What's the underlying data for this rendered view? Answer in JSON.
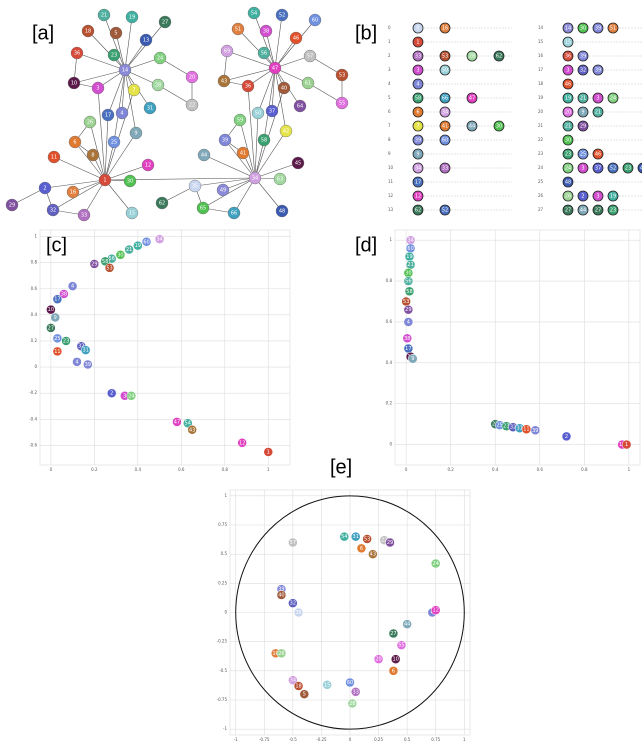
{
  "palette": [
    "#c9d6f0",
    "#d64a3a",
    "#5a5fd0",
    "#d24fd0",
    "#7f86d8",
    "#a05a3a",
    "#e07a30",
    "#e4e44a",
    "#a9743a",
    "#7fa8b8",
    "#5b1a4a",
    "#e0502a",
    "#e040c0",
    "#3a5ab0",
    "#8a8ad8",
    "#9ad0d8",
    "#e08040",
    "#4a70c0",
    "#b85030",
    "#40b0a0",
    "#e070e0",
    "#50b0a0",
    "#c0c0c0",
    "#3aa070",
    "#80d080",
    "#7090e0",
    "#9ad090",
    "#3a7a5a",
    "#a0d8a0",
    "#8050a0",
    "#50c050",
    "#40a0c0",
    "#6060c0",
    "#b070c0",
    "#d0a0e0"
  ],
  "panels": {
    "a": {
      "label": "[a]",
      "graphs": [
        {
          "nodes": [
            21,
            19,
            27,
            18,
            5,
            13,
            36,
            23,
            14,
            24,
            20,
            10,
            3,
            7,
            28,
            22,
            17,
            31,
            26,
            9,
            4,
            6,
            25,
            8,
            11,
            12,
            1,
            2,
            16,
            30,
            29,
            32,
            33,
            15
          ]
        },
        {
          "nodes": [
            54,
            52,
            60,
            51,
            38,
            46,
            69,
            56,
            47,
            57,
            53,
            43,
            36,
            40,
            61,
            55,
            50,
            64,
            59,
            42,
            37,
            39,
            58,
            41,
            44,
            45,
            34,
            35,
            49,
            63,
            62,
            65,
            66,
            48
          ]
        }
      ]
    },
    "b": {
      "label": "[b]",
      "rows": [
        {
          "index": 0,
          "items": [
            0,
            16
          ]
        },
        {
          "index": 1,
          "items": [
            1
          ]
        },
        {
          "index": 2,
          "items": [
            33,
            53,
            28,
            62
          ]
        },
        {
          "index": 3,
          "items": [
            3,
            50
          ]
        },
        {
          "index": 4,
          "items": [
            4
          ]
        },
        {
          "index": 5,
          "items": [
            58,
            66,
            47
          ]
        },
        {
          "index": 6,
          "items": [
            6,
            34
          ]
        },
        {
          "index": 7,
          "items": [
            7,
            41,
            44,
            30
          ]
        },
        {
          "index": 8,
          "items": [
            39,
            60
          ]
        },
        {
          "index": 9,
          "items": [
            9
          ]
        },
        {
          "index": 10,
          "items": [
            34,
            33
          ]
        },
        {
          "index": 11,
          "items": [
            17
          ]
        },
        {
          "index": 12,
          "items": [
            12
          ]
        },
        {
          "index": 13,
          "items": [
            62,
            52
          ]
        },
        {
          "index": 14,
          "items": [
            14,
            30,
            39,
            51
          ]
        },
        {
          "index": 15,
          "items": [
            15
          ]
        },
        {
          "index": 16,
          "items": [
            36,
            39
          ]
        },
        {
          "index": 17,
          "items": [
            3,
            32,
            39
          ]
        },
        {
          "index": 18,
          "items": [
            46
          ]
        },
        {
          "index": 19,
          "items": [
            19,
            21,
            3,
            24
          ]
        },
        {
          "index": 20,
          "items": [
            20,
            9,
            21
          ]
        },
        {
          "index": 21,
          "items": [
            21,
            29
          ]
        },
        {
          "index": 22,
          "items": [
            30
          ]
        },
        {
          "index": 23,
          "items": [
            23,
            25,
            46
          ]
        },
        {
          "index": 24,
          "items": [
            24,
            3,
            37,
            52,
            23,
            48
          ]
        },
        {
          "index": 25,
          "items": [
            48
          ]
        },
        {
          "index": 26,
          "items": [
            26,
            2,
            3,
            19
          ]
        },
        {
          "index": 27,
          "items": [
            27,
            44,
            27,
            23
          ]
        }
      ]
    },
    "c": {
      "label": "[c]",
      "type": "scatter",
      "grid": true,
      "xlim": [
        -0.05,
        1.1
      ],
      "ylim": [
        -0.75,
        1.05
      ],
      "xticks": [
        0,
        0.2,
        0.4,
        0.6,
        0.8,
        1
      ],
      "yticks": [
        -0.6,
        -0.4,
        -0.2,
        0,
        0.2,
        0.4,
        0.6,
        0.8,
        1
      ],
      "points": {
        "x": [
          0.5,
          0.44,
          0.4,
          0.36,
          0.32,
          0.28,
          0.25,
          0.2,
          0.27,
          0.1,
          0.06,
          0.03,
          0,
          0.02,
          0,
          0.03,
          0.07,
          0.14,
          0.16,
          0.03,
          0.12,
          0.17,
          0.28,
          0.34,
          0.37,
          0.58,
          0.63,
          0.65,
          0.88,
          1
        ],
        "y": [
          0.98,
          0.96,
          0.93,
          0.9,
          0.86,
          0.83,
          0.81,
          0.79,
          0.76,
          0.62,
          0.56,
          0.52,
          0.44,
          0.38,
          0.3,
          0.22,
          0.2,
          0.16,
          0.13,
          0.12,
          0.04,
          0.02,
          -0.2,
          -0.22,
          -0.22,
          -0.42,
          -0.43,
          -0.48,
          -0.58,
          -0.65
        ],
        "labels": [
          34,
          60,
          19,
          21,
          30,
          56,
          58,
          29,
          53,
          4,
          38,
          17,
          10,
          9,
          27,
          25,
          23,
          32,
          31,
          11,
          4,
          39,
          2,
          3,
          24,
          47,
          54,
          43,
          12,
          1
        ]
      }
    },
    "d": {
      "label": "[d]",
      "type": "scatter",
      "grid": true,
      "xlim": [
        -0.05,
        1.05
      ],
      "ylim": [
        -0.1,
        1.05
      ],
      "xticks": [
        0,
        0.2,
        0.4,
        0.6,
        0.8,
        1
      ],
      "yticks": [
        0,
        0.2,
        0.4,
        0.6,
        0.8,
        1
      ],
      "points": {
        "x": [
          0.02,
          0.02,
          0.015,
          0.02,
          0.01,
          0.01,
          0.015,
          0,
          0.01,
          0.01,
          0.005,
          0.01,
          0.02,
          0.03,
          0.4,
          0.42,
          0.45,
          0.48,
          0.51,
          0.54,
          0.58,
          0.72,
          0.97,
          0.99
        ],
        "y": [
          1,
          0.96,
          0.92,
          0.88,
          0.84,
          0.8,
          0.75,
          0.7,
          0.66,
          0.6,
          0.52,
          0.47,
          0.43,
          0.42,
          0.1,
          0.095,
          0.09,
          0.085,
          0.08,
          0.075,
          0.07,
          0.04,
          0,
          0
        ],
        "labels": [
          34,
          60,
          19,
          21,
          30,
          56,
          58,
          53,
          29,
          4,
          38,
          17,
          10,
          9,
          27,
          25,
          23,
          32,
          31,
          11,
          39,
          2,
          12,
          1
        ]
      }
    },
    "e": {
      "label": "[e]",
      "type": "scatter",
      "grid": true,
      "circle_radius": 1,
      "xlim": [
        -1.05,
        1.05
      ],
      "ylim": [
        -1.05,
        1.05
      ],
      "xticks": [
        -1,
        -0.75,
        -0.5,
        -0.25,
        0,
        0.25,
        0.5,
        0.75,
        1
      ],
      "yticks": [
        -1,
        -0.75,
        -0.5,
        -0.25,
        0,
        0.25,
        0.5,
        0.75,
        1
      ],
      "points": {
        "x": [
          -0.05,
          0.05,
          0.15,
          0.3,
          0.35,
          0.2,
          0.1,
          -0.5,
          0.75,
          -0.6,
          -0.6,
          -0.5,
          -0.45,
          0.72,
          0.75,
          0.5,
          0.38,
          0.45,
          0.4,
          0.25,
          0.38,
          -0.65,
          -0.6,
          -0.5,
          -0.45,
          -0.4,
          -0.2,
          0,
          0.05,
          0.02
        ],
        "y": [
          0.65,
          0.65,
          0.63,
          0.62,
          0.6,
          0.5,
          0.55,
          0.6,
          0.42,
          0.2,
          0.15,
          0.08,
          0,
          0,
          0.02,
          -0.1,
          -0.18,
          -0.28,
          -0.4,
          -0.4,
          -0.5,
          -0.35,
          -0.35,
          -0.58,
          -0.63,
          -0.7,
          -0.62,
          -0.6,
          -0.68,
          -0.78
        ],
        "labels": [
          54,
          31,
          53,
          22,
          29,
          43,
          6,
          57,
          24,
          39,
          40,
          32,
          35,
          4,
          12,
          44,
          27,
          55,
          10,
          20,
          6,
          16,
          26,
          34,
          18,
          5,
          15,
          60,
          33,
          28
        ]
      }
    }
  }
}
